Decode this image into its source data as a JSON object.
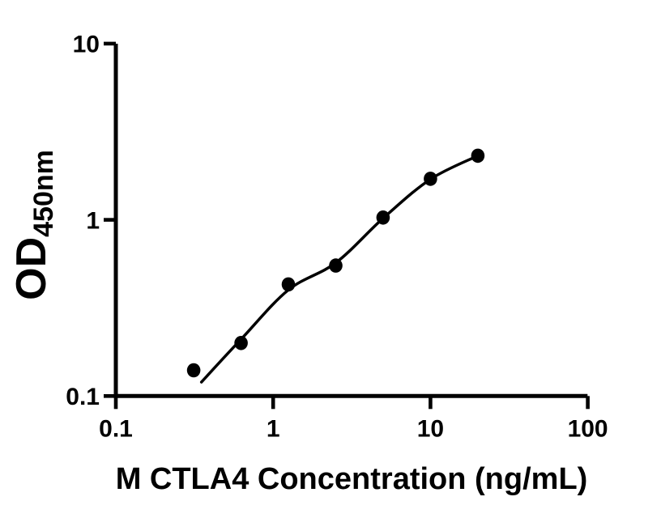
{
  "figure": {
    "background_color": "#ffffff",
    "ink_color": "#000000"
  },
  "chart_data": {
    "type": "scatter",
    "title": "",
    "xlabel": "M CTLA4 Concentration (ng/mL)",
    "ylabel": {
      "main": "OD",
      "sub": "450nm"
    },
    "x_scale": "log",
    "y_scale": "log",
    "xlim": [
      0.1,
      100
    ],
    "ylim": [
      0.1,
      10
    ],
    "grid": false,
    "legend": false,
    "x_ticks": [
      {
        "value": 0.1,
        "label": "0.1"
      },
      {
        "value": 1,
        "label": "1"
      },
      {
        "value": 10,
        "label": "10"
      },
      {
        "value": 100,
        "label": "100"
      }
    ],
    "y_ticks": [
      {
        "value": 0.1,
        "label": "0.1"
      },
      {
        "value": 1,
        "label": "1"
      },
      {
        "value": 10,
        "label": "10"
      }
    ],
    "series": [
      {
        "name": "standard-data-points",
        "type": "scatter",
        "marker": "filled-circle",
        "color": "#000000",
        "points": [
          {
            "x": 0.3125,
            "y": 0.14
          },
          {
            "x": 0.625,
            "y": 0.2
          },
          {
            "x": 1.25,
            "y": 0.43
          },
          {
            "x": 2.5,
            "y": 0.55
          },
          {
            "x": 5,
            "y": 1.03
          },
          {
            "x": 10,
            "y": 1.71
          },
          {
            "x": 20,
            "y": 2.31
          }
        ]
      },
      {
        "name": "four-parameter-fit-curve",
        "type": "line",
        "color": "#000000",
        "points": [
          {
            "x": 0.35,
            "y": 0.12
          },
          {
            "x": 0.625,
            "y": 0.21
          },
          {
            "x": 1.25,
            "y": 0.4
          },
          {
            "x": 2.5,
            "y": 0.57
          },
          {
            "x": 5,
            "y": 1.02
          },
          {
            "x": 10,
            "y": 1.7
          },
          {
            "x": 20,
            "y": 2.31
          }
        ]
      }
    ]
  }
}
